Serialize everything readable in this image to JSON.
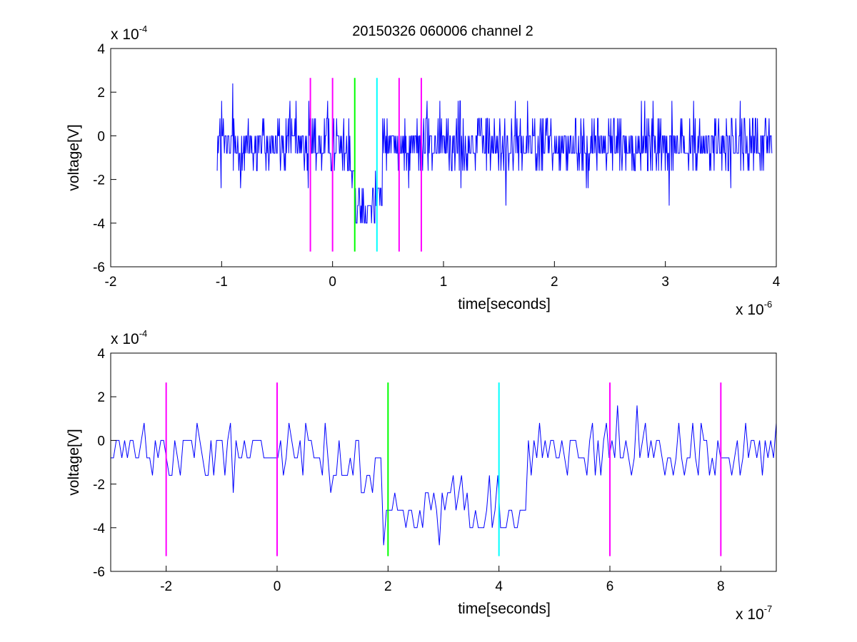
{
  "figure": {
    "title": "20150326 060006 channel 2"
  },
  "colors": {
    "signal": "#0000ff",
    "marker_magenta": "#ff00ff",
    "marker_green": "#00ff00",
    "marker_cyan": "#00ffff",
    "axes": "#000000",
    "background": "#ffffff"
  },
  "chart_data": [
    {
      "type": "line",
      "title": "20150326 060006 channel 2",
      "xlabel": "time[seconds]",
      "ylabel": "voltage[V]",
      "x_multiplier": "x 10",
      "x_multiplier_exp": "-6",
      "y_multiplier": "x 10",
      "y_multiplier_exp": "-4",
      "xlim": [
        -2e-06,
        4e-06
      ],
      "ylim": [
        -0.0006,
        0.0004
      ],
      "x_ticks": [
        -2e-06,
        -1e-06,
        0,
        1e-06,
        2e-06,
        3e-06,
        4e-06
      ],
      "x_tick_labels": [
        "-2",
        "-1",
        "0",
        "1",
        "2",
        "3",
        "4"
      ],
      "y_ticks": [
        -0.0006,
        -0.0004,
        -0.0002,
        0,
        0.0002,
        0.0004
      ],
      "y_tick_labels": [
        "-6",
        "-4",
        "-2",
        "0",
        "2",
        "4"
      ],
      "grid": false,
      "series": [
        {
          "color": "#0000ff",
          "x_start": -1.04e-06,
          "x_end": 3.96e-06,
          "y_range": [
            -0.00048,
            0.00024
          ],
          "baseline": -4e-05,
          "dip": {
            "x_from": 2e-07,
            "x_to": 4.5e-07,
            "level": -0.00029
          },
          "values_note": ""
        }
      ],
      "markers": [
        {
          "x": -2e-07,
          "color": "#ff00ff",
          "y_from": -0.00053,
          "y_to": 0.000265
        },
        {
          "x": 0,
          "color": "#ff00ff",
          "y_from": -0.00053,
          "y_to": 0.000265
        },
        {
          "x": 2e-07,
          "color": "#00ff00",
          "y_from": -0.00053,
          "y_to": 0.000265
        },
        {
          "x": 4e-07,
          "color": "#00ffff",
          "y_from": -0.00053,
          "y_to": 0.000265
        },
        {
          "x": 6e-07,
          "color": "#ff00ff",
          "y_from": -0.00053,
          "y_to": 0.000265
        },
        {
          "x": 8e-07,
          "color": "#ff00ff",
          "y_from": -0.00053,
          "y_to": 0.000265
        }
      ]
    },
    {
      "type": "line",
      "title": "",
      "xlabel": "time[seconds]",
      "ylabel": "voltage[V]",
      "x_multiplier": "x 10",
      "x_multiplier_exp": "-7",
      "y_multiplier": "x 10",
      "y_multiplier_exp": "-4",
      "xlim": [
        -3e-07,
        9e-07
      ],
      "ylim": [
        -0.0006,
        0.0004
      ],
      "x_ticks": [
        -2e-07,
        0,
        2e-07,
        4e-07,
        6e-07,
        8e-07
      ],
      "x_tick_labels": [
        "-2",
        "0",
        "2",
        "4",
        "6",
        "8"
      ],
      "y_ticks": [
        -0.0006,
        -0.0004,
        -0.0002,
        0,
        0.0002,
        0.0004
      ],
      "y_tick_labels": [
        "-6",
        "-4",
        "-2",
        "0",
        "2",
        "4"
      ],
      "grid": false,
      "series": [
        {
          "color": "#0000ff",
          "x_start": -3e-07,
          "x_end": 9e-07,
          "y_range": [
            -0.00048,
            0.00024
          ],
          "baseline": -6e-05,
          "dip": {
            "x_from": 1.9e-07,
            "x_to": 4.5e-07,
            "level": -0.0003
          },
          "values_note": ""
        }
      ],
      "markers": [
        {
          "x": -2e-07,
          "color": "#ff00ff",
          "y_from": -0.00053,
          "y_to": 0.000265
        },
        {
          "x": 0,
          "color": "#ff00ff",
          "y_from": -0.00053,
          "y_to": 0.000265
        },
        {
          "x": 2e-07,
          "color": "#00ff00",
          "y_from": -0.00053,
          "y_to": 0.000265
        },
        {
          "x": 4e-07,
          "color": "#00ffff",
          "y_from": -0.00053,
          "y_to": 0.000265
        },
        {
          "x": 6e-07,
          "color": "#ff00ff",
          "y_from": -0.00053,
          "y_to": 0.000265
        },
        {
          "x": 8e-07,
          "color": "#ff00ff",
          "y_from": -0.00053,
          "y_to": 0.000265
        }
      ]
    }
  ]
}
